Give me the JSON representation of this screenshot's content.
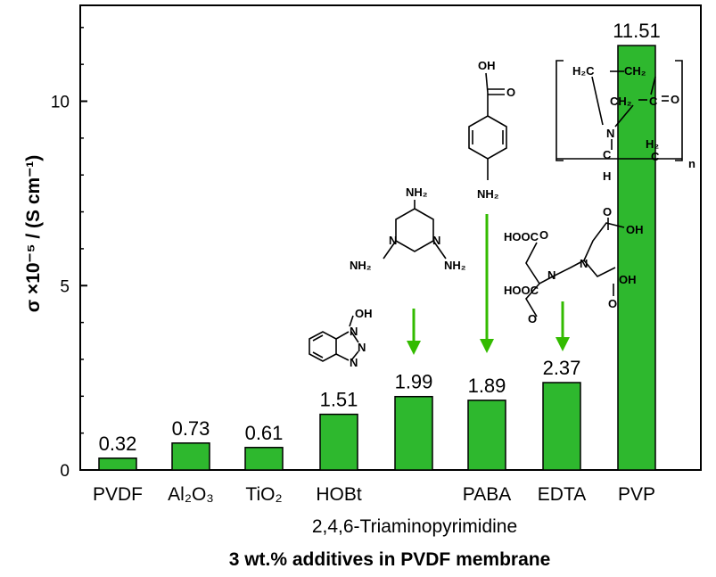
{
  "chart_data": {
    "type": "bar",
    "categories": [
      "PVDF",
      "Al₂O₃",
      "TiO₂",
      "HOBt",
      "2,4,6-Triaminopyrimidine",
      "PABA",
      "EDTA",
      "PVP"
    ],
    "values": [
      0.32,
      0.73,
      0.61,
      1.51,
      1.99,
      1.89,
      2.37,
      11.51
    ],
    "value_labels": [
      "0.32",
      "0.73",
      "0.61",
      "1.51",
      "1.99",
      "1.89",
      "2.37",
      "11.51"
    ],
    "xlabel": "3 wt.% additives in PVDF membrane",
    "ylabel": "σ ×10⁻⁵ / (S cm⁻¹)",
    "ylim": [
      0,
      12.6
    ],
    "yticks": [
      "0",
      "5",
      "10"
    ],
    "grid": false,
    "bar_color": "#2eb82e",
    "arrow_color": "#33bb00"
  },
  "structures": {
    "hobt": {
      "oh": "OH",
      "n1": "N",
      "n2": "N",
      "n3": "N"
    },
    "triaminopyrimidine": {
      "nh2_top": "NH₂",
      "nh2_left": "NH₂",
      "nh2_right": "NH₂",
      "n_left": "N",
      "n_right": "N"
    },
    "paba": {
      "oh": "OH",
      "o": "O",
      "nh2": "NH₂"
    },
    "edta": {
      "hooc_tl": "HOOC",
      "hooc_bl": "HOOC",
      "cooh_tr": "OH",
      "cooh_br": "OH",
      "o1": "O",
      "o2": "O",
      "o3": "O",
      "o4": "O",
      "n1": "N",
      "n2": "N"
    },
    "pvp": {
      "h2c": "H₂C",
      "ch2_top": "CH₂",
      "ch2_mid": "CH₂",
      "c": "C",
      "o": "O",
      "n": "N",
      "h": "H",
      "h2": "H₂",
      "c2": "C",
      "c3": "C",
      "n_sub": "n"
    }
  }
}
